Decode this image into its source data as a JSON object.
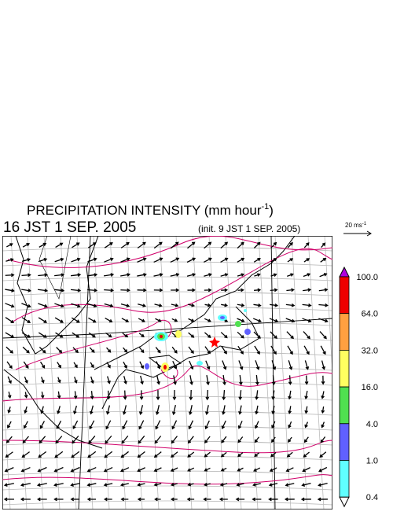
{
  "header": {
    "title": "PRECIPITATION INTENSITY (mm hour",
    "title_exponent": "-1",
    "title_end": ")",
    "valid_time": "16 JST 1 SEP. 2005",
    "init_time": "(init. 9 JST 1 SEP. 2005)"
  },
  "wind_legend": {
    "label": "20 ms",
    "exponent": "-1"
  },
  "colorbar": {
    "levels": [
      {
        "value": 100,
        "label": "100.0"
      },
      {
        "value": 64,
        "label": "64.0"
      },
      {
        "value": 32,
        "label": "32.0"
      },
      {
        "value": 16,
        "label": "16.0"
      },
      {
        "value": 4,
        "label": "4.0"
      },
      {
        "value": 1,
        "label": "1.0"
      },
      {
        "value": 0.4,
        "label": "0.4"
      }
    ],
    "band_colors": [
      "#ee0000",
      "#ffa040",
      "#ffff60",
      "#50e050",
      "#6060ff",
      "#60ffff"
    ],
    "over_color": "#b000e0",
    "under_color": "#ffffff"
  }
}
